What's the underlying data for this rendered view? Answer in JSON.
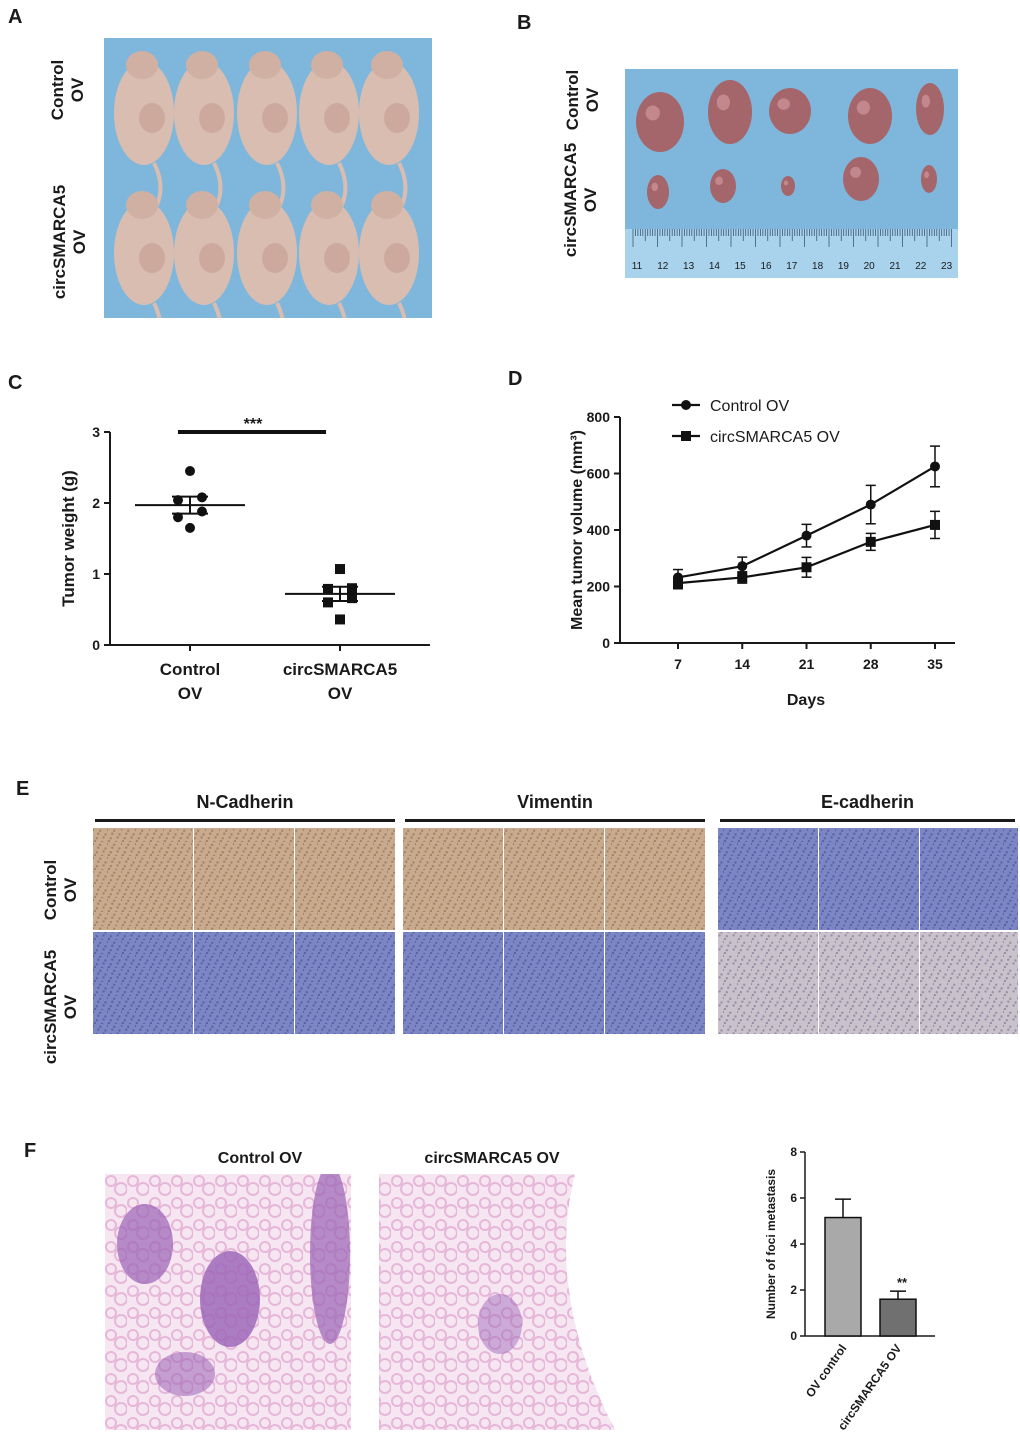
{
  "panels": {
    "A": {
      "letter": "A",
      "row_labels": [
        "Control\nOV",
        "circSMARCA5\nOV"
      ]
    },
    "B": {
      "letter": "B",
      "row_labels": [
        "Control\nOV",
        "circSMARCA5\nOV"
      ],
      "ruler_ticks": [
        "11",
        "12",
        "13",
        "14",
        "15",
        "16",
        "17",
        "18",
        "19",
        "20",
        "21",
        "22",
        "23"
      ]
    },
    "C": {
      "letter": "C",
      "significance": "***"
    },
    "D": {
      "letter": "D"
    },
    "E": {
      "letter": "E",
      "markers": [
        "N-Cadherin",
        "Vimentin",
        "E-cadherin"
      ],
      "row_labels": [
        "Control\nOV",
        "circSMARCA5\nOV"
      ]
    },
    "F": {
      "letter": "F",
      "image_titles": [
        "Control OV",
        "circSMARCA5 OV"
      ],
      "significance": "**"
    }
  },
  "colors": {
    "photo_bg_blue": "#7fb7dc",
    "mouse_skin": "#d9bdb0",
    "tumor": "#a4666a",
    "ihc_brown": "#c8aa8e",
    "ihc_blue": "#7c86c4",
    "he_pink": "#e7b7d9",
    "he_purple": "#9a62b5",
    "bar_light": "#a9a9a9",
    "bar_dark": "#707070"
  },
  "chart_data": [
    {
      "panel": "C",
      "type": "scatter",
      "title": "",
      "ylabel": "Tumor weight (g)",
      "xlabel": "",
      "categories": [
        "Control\nOV",
        "circSMARCA5\nOV"
      ],
      "ylim": [
        0,
        3
      ],
      "yticks": [
        "0",
        "1",
        "2",
        "3"
      ],
      "series": [
        {
          "marker": "circle",
          "points": [
            2.45,
            2.08,
            2.04,
            1.88,
            1.8,
            1.65
          ],
          "mean": 1.97,
          "sem_low": 1.85,
          "sem_high": 2.09
        },
        {
          "marker": "square",
          "points": [
            1.07,
            0.8,
            0.79,
            0.66,
            0.6,
            0.36
          ],
          "mean": 0.72,
          "sem_low": 0.62,
          "sem_high": 0.82
        }
      ]
    },
    {
      "panel": "D",
      "type": "line",
      "title": "",
      "xlabel": "Days",
      "ylabel": "Mean tumor volume (mm³)",
      "x": [
        7,
        14,
        21,
        28,
        35
      ],
      "xticks": [
        "7",
        "14",
        "21",
        "28",
        "35"
      ],
      "ylim": [
        0,
        800
      ],
      "yticks": [
        "0",
        "200",
        "400",
        "600",
        "800"
      ],
      "legend_position": "top-left",
      "series": [
        {
          "name": "Control OV",
          "marker": "circle",
          "values": [
            232,
            272,
            380,
            490,
            625
          ],
          "err": [
            28,
            32,
            40,
            68,
            72
          ]
        },
        {
          "name": "circSMARCA5 OV",
          "marker": "square",
          "values": [
            212,
            232,
            268,
            358,
            418
          ],
          "err": [
            20,
            20,
            35,
            30,
            48
          ]
        }
      ]
    },
    {
      "panel": "F",
      "type": "bar",
      "title": "",
      "xlabel": "",
      "ylabel": "Number of foci metastasis",
      "categories": [
        "OV control",
        "circSMARCA5 OV"
      ],
      "values": [
        5.15,
        1.6
      ],
      "err": [
        0.8,
        0.35
      ],
      "ylim": [
        0,
        8
      ],
      "yticks": [
        "0",
        "2",
        "4",
        "6",
        "8"
      ]
    }
  ]
}
